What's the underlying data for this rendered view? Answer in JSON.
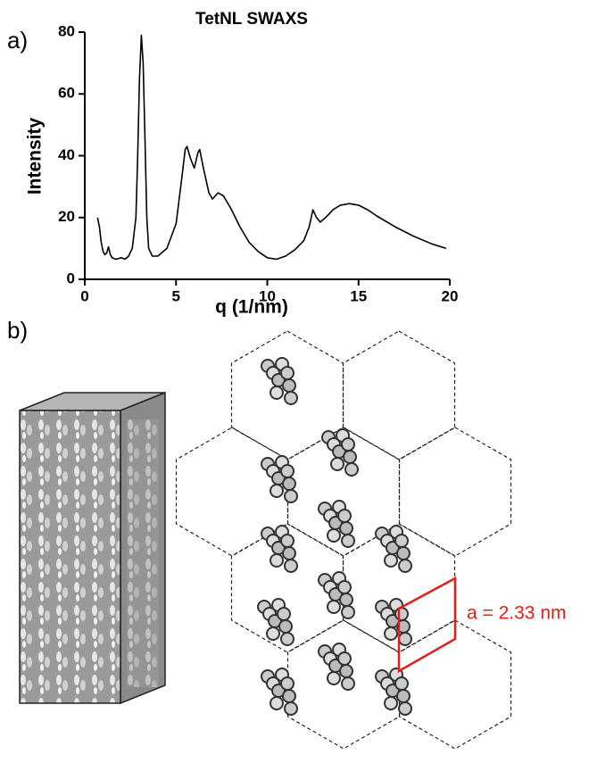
{
  "panel_labels": [
    "a)",
    "b)"
  ],
  "chart_data": {
    "type": "line",
    "title": "TetNL SWAXS",
    "xlabel": "q (1/nm)",
    "ylabel": "Intensity",
    "x": [
      0.7,
      0.8,
      0.9,
      1.0,
      1.1,
      1.2,
      1.3,
      1.4,
      1.5,
      1.7,
      2.0,
      2.2,
      2.4,
      2.6,
      2.8,
      2.9,
      3.0,
      3.1,
      3.2,
      3.3,
      3.4,
      3.5,
      3.7,
      4.0,
      4.5,
      5.0,
      5.3,
      5.5,
      5.6,
      5.8,
      6.0,
      6.2,
      6.3,
      6.5,
      6.8,
      7.0,
      7.3,
      7.6,
      8.0,
      8.5,
      9.0,
      9.5,
      10.0,
      10.5,
      11.0,
      11.5,
      12.0,
      12.3,
      12.5,
      12.7,
      12.9,
      13.2,
      13.6,
      14.0,
      14.5,
      15.0,
      15.5,
      16.0,
      17.0,
      18.0,
      19.0,
      19.8
    ],
    "series": [
      {
        "color": "#000000",
        "values": [
          20,
          17,
          12,
          9,
          8,
          8.5,
          10.5,
          8,
          7,
          6.5,
          7,
          6.5,
          7.5,
          10,
          20,
          40,
          65,
          79,
          70,
          45,
          20,
          10,
          7.5,
          7.5,
          10,
          18,
          32,
          42,
          43,
          39,
          36,
          41,
          42,
          36,
          28,
          26,
          28,
          27,
          23,
          17,
          12,
          9,
          7,
          6.5,
          7.5,
          9.5,
          12.5,
          17,
          22.5,
          20,
          18.5,
          20,
          22.5,
          24,
          24.5,
          24,
          22.5,
          20.5,
          17,
          14,
          11.5,
          10
        ]
      }
    ],
    "xlim": [
      0,
      20
    ],
    "ylim": [
      0,
      80
    ],
    "xticks": [
      0,
      5,
      10,
      15,
      20
    ],
    "yticks": [
      0,
      20,
      40,
      60,
      80
    ]
  },
  "diagram": {
    "annotation": "a = 2.33 nm"
  }
}
